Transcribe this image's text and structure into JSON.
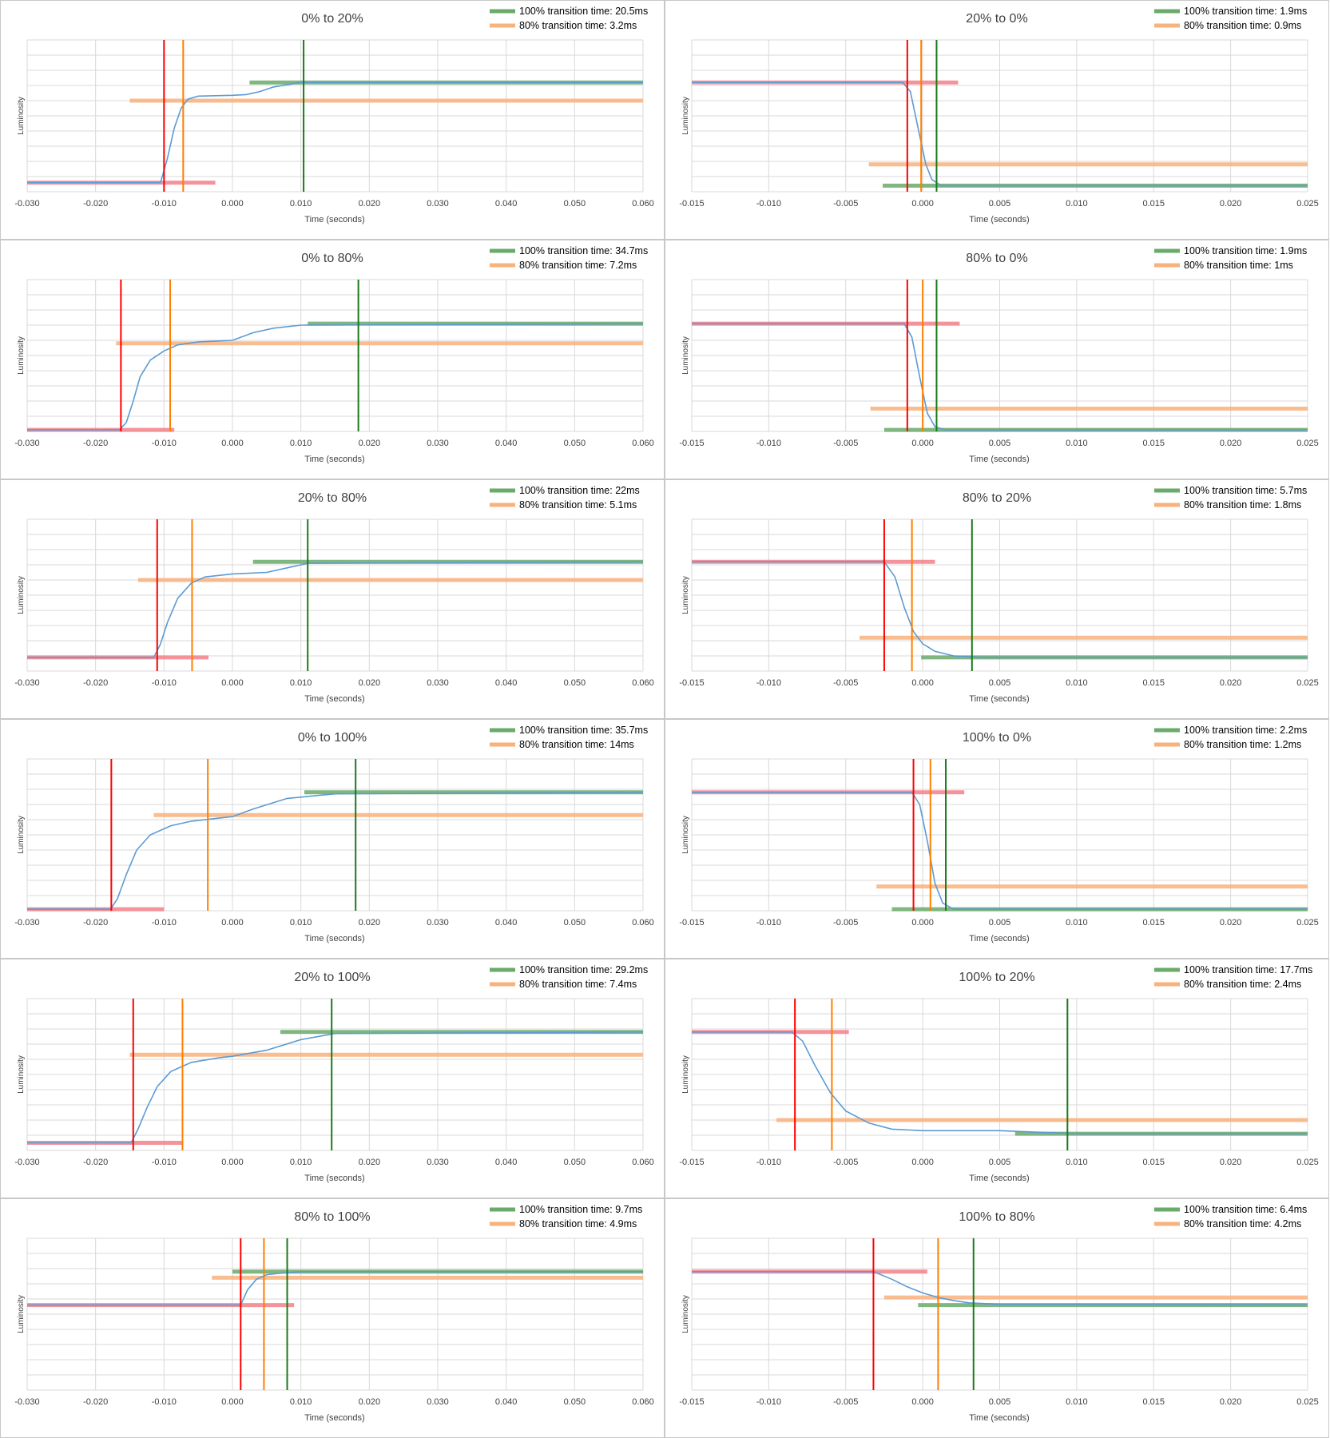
{
  "colors": {
    "curve": "#5b9bd5",
    "red_marker": "#ff0000",
    "orange_marker": "#ff7f00",
    "green_marker": "#1a7a1a",
    "green_band": "#6aaa6a",
    "orange_band": "#f8b27c",
    "red_band": "#f3808a",
    "grid": "#d9d9d9",
    "frame": "#c8c8c8",
    "text": "#404040"
  },
  "chart_data": [
    {
      "type": "line",
      "title": "0% to 20%",
      "xlabel": "Time (seconds)",
      "ylabel": "Luminosity",
      "x_ticks": [
        "-0.030",
        "-0.020",
        "-0.010",
        "0.000",
        "0.010",
        "0.020",
        "0.030",
        "0.040",
        "0.050",
        "0.060"
      ],
      "xlim": [
        -0.03,
        0.06
      ],
      "ylim": [
        0,
        100
      ],
      "grid": true,
      "legend": [
        {
          "label": "100% transition time: 20.5ms",
          "color": "green"
        },
        {
          "label": "80% transition time: 3.2ms",
          "color": "orange"
        }
      ],
      "start_level": 6,
      "end_level": 72,
      "mid_level": 60,
      "curve": [
        [
          -0.03,
          6
        ],
        [
          -0.0105,
          6
        ],
        [
          -0.0095,
          22
        ],
        [
          -0.0085,
          42
        ],
        [
          -0.0075,
          55
        ],
        [
          -0.0065,
          61
        ],
        [
          -0.005,
          63
        ],
        [
          0,
          63.5
        ],
        [
          0.002,
          64
        ],
        [
          0.004,
          66
        ],
        [
          0.006,
          69
        ],
        [
          0.01,
          72
        ],
        [
          0.06,
          72
        ]
      ],
      "red_band": [
        -0.03,
        -0.0025,
        6
      ],
      "orange_band": [
        -0.015,
        0.06,
        60
      ],
      "green_band": [
        0.0025,
        0.06,
        72
      ],
      "red_x": -0.01,
      "orange_x": -0.0072,
      "green_x": 0.0104
    },
    {
      "type": "line",
      "title": "20% to 0%",
      "xlabel": "Time (seconds)",
      "ylabel": "Luminosity",
      "x_ticks": [
        "-0.015",
        "-0.010",
        "-0.005",
        "0.000",
        "0.005",
        "0.010",
        "0.015",
        "0.020",
        "0.025"
      ],
      "xlim": [
        -0.015,
        0.025
      ],
      "ylim": [
        0,
        100
      ],
      "grid": true,
      "legend": [
        {
          "label": "100% transition time: 1.9ms",
          "color": "green"
        },
        {
          "label": "80% transition time: 0.9ms",
          "color": "orange"
        }
      ],
      "curve": [
        [
          -0.015,
          72
        ],
        [
          -0.0013,
          72
        ],
        [
          -0.0008,
          66
        ],
        [
          -0.0003,
          42
        ],
        [
          0.0002,
          18
        ],
        [
          0.0006,
          8
        ],
        [
          0.0012,
          4
        ],
        [
          0.025,
          4
        ]
      ],
      "red_band": [
        -0.015,
        0.0023,
        72
      ],
      "orange_band": [
        -0.0035,
        0.025,
        18
      ],
      "green_band": [
        -0.0026,
        0.025,
        4
      ],
      "red_x": -0.001,
      "orange_x": -0.0001,
      "green_x": 0.0009
    },
    {
      "type": "line",
      "title": "0% to 80%",
      "xlabel": "Time (seconds)",
      "ylabel": "Luminosity",
      "x_ticks": [
        "-0.030",
        "-0.020",
        "-0.010",
        "0.000",
        "0.010",
        "0.020",
        "0.030",
        "0.040",
        "0.050",
        "0.060"
      ],
      "xlim": [
        -0.03,
        0.06
      ],
      "ylim": [
        0,
        100
      ],
      "grid": true,
      "legend": [
        {
          "label": "100% transition time: 34.7ms",
          "color": "green"
        },
        {
          "label": "80% transition time: 7.2ms",
          "color": "orange"
        }
      ],
      "curve": [
        [
          -0.03,
          1
        ],
        [
          -0.0165,
          1
        ],
        [
          -0.0155,
          6
        ],
        [
          -0.0145,
          20
        ],
        [
          -0.0135,
          36
        ],
        [
          -0.012,
          47
        ],
        [
          -0.01,
          53
        ],
        [
          -0.008,
          57
        ],
        [
          -0.005,
          59
        ],
        [
          0,
          60
        ],
        [
          0.003,
          65
        ],
        [
          0.006,
          68
        ],
        [
          0.01,
          70
        ],
        [
          0.06,
          71
        ]
      ],
      "red_band": [
        -0.03,
        -0.0085,
        1
      ],
      "orange_band": [
        -0.017,
        0.06,
        58
      ],
      "green_band": [
        0.011,
        0.06,
        71
      ],
      "red_x": -0.0163,
      "orange_x": -0.0091,
      "green_x": 0.0184
    },
    {
      "type": "line",
      "title": "80% to 0%",
      "xlabel": "Time (seconds)",
      "ylabel": "Luminosity",
      "x_ticks": [
        "-0.015",
        "-0.010",
        "-0.005",
        "0.000",
        "0.005",
        "0.010",
        "0.015",
        "0.020",
        "0.025"
      ],
      "xlim": [
        -0.015,
        0.025
      ],
      "ylim": [
        0,
        100
      ],
      "grid": true,
      "legend": [
        {
          "label": "100% transition time: 1.9ms",
          "color": "green"
        },
        {
          "label": "80% transition time: 1ms",
          "color": "orange"
        }
      ],
      "curve": [
        [
          -0.015,
          71
        ],
        [
          -0.0012,
          71
        ],
        [
          -0.0007,
          62
        ],
        [
          -0.0002,
          36
        ],
        [
          0.0003,
          12
        ],
        [
          0.0008,
          3
        ],
        [
          0.0015,
          1
        ],
        [
          0.025,
          1
        ]
      ],
      "red_band": [
        -0.015,
        0.0024,
        71
      ],
      "orange_band": [
        -0.0034,
        0.025,
        15
      ],
      "green_band": [
        -0.0025,
        0.025,
        1
      ],
      "red_x": -0.001,
      "orange_x": 0.0,
      "green_x": 0.0009
    },
    {
      "type": "line",
      "title": "20% to 80%",
      "xlabel": "Time (seconds)",
      "ylabel": "Luminosity",
      "x_ticks": [
        "-0.030",
        "-0.020",
        "-0.010",
        "0.000",
        "0.010",
        "0.020",
        "0.030",
        "0.040",
        "0.050",
        "0.060"
      ],
      "xlim": [
        -0.03,
        0.06
      ],
      "ylim": [
        0,
        100
      ],
      "grid": true,
      "legend": [
        {
          "label": "100% transition time: 22ms",
          "color": "green"
        },
        {
          "label": "80% transition time: 5.1ms",
          "color": "orange"
        }
      ],
      "curve": [
        [
          -0.03,
          9
        ],
        [
          -0.0115,
          9
        ],
        [
          -0.0105,
          18
        ],
        [
          -0.0095,
          32
        ],
        [
          -0.008,
          48
        ],
        [
          -0.006,
          58
        ],
        [
          -0.004,
          62
        ],
        [
          0,
          64
        ],
        [
          0.005,
          65
        ],
        [
          0.008,
          68
        ],
        [
          0.011,
          71
        ],
        [
          0.06,
          72
        ]
      ],
      "red_band": [
        -0.03,
        -0.0035,
        9
      ],
      "orange_band": [
        -0.0138,
        0.06,
        60
      ],
      "green_band": [
        0.003,
        0.06,
        72
      ],
      "red_x": -0.011,
      "orange_x": -0.0059,
      "green_x": 0.011
    },
    {
      "type": "line",
      "title": "80% to 20%",
      "xlabel": "Time (seconds)",
      "ylabel": "Luminosity",
      "x_ticks": [
        "-0.015",
        "-0.010",
        "-0.005",
        "0.000",
        "0.005",
        "0.010",
        "0.015",
        "0.020",
        "0.025"
      ],
      "xlim": [
        -0.015,
        0.025
      ],
      "ylim": [
        0,
        100
      ],
      "grid": true,
      "legend": [
        {
          "label": "100% transition time: 5.7ms",
          "color": "green"
        },
        {
          "label": "80% transition time: 1.8ms",
          "color": "orange"
        }
      ],
      "curve": [
        [
          -0.015,
          72
        ],
        [
          -0.0025,
          72
        ],
        [
          -0.0018,
          62
        ],
        [
          -0.0012,
          42
        ],
        [
          -0.0006,
          26
        ],
        [
          0,
          18
        ],
        [
          0.0008,
          13
        ],
        [
          0.002,
          10
        ],
        [
          0.004,
          9
        ],
        [
          0.025,
          9
        ]
      ],
      "red_band": [
        -0.015,
        0.0008,
        72
      ],
      "orange_band": [
        -0.0041,
        0.025,
        22
      ],
      "green_band": [
        -0.0001,
        0.025,
        9
      ],
      "red_x": -0.0025,
      "orange_x": -0.0007,
      "green_x": 0.0032
    },
    {
      "type": "line",
      "title": "0% to 100%",
      "xlabel": "Time (seconds)",
      "ylabel": "Luminosity",
      "x_ticks": [
        "-0.030",
        "-0.020",
        "-0.010",
        "0.000",
        "0.010",
        "0.020",
        "0.030",
        "0.040",
        "0.050",
        "0.060"
      ],
      "xlim": [
        -0.03,
        0.06
      ],
      "ylim": [
        0,
        100
      ],
      "grid": true,
      "legend": [
        {
          "label": "100% transition time: 35.7ms",
          "color": "green"
        },
        {
          "label": "80% transition time: 14ms",
          "color": "orange"
        }
      ],
      "curve": [
        [
          -0.03,
          1
        ],
        [
          -0.0178,
          1
        ],
        [
          -0.0168,
          8
        ],
        [
          -0.0155,
          24
        ],
        [
          -0.014,
          40
        ],
        [
          -0.012,
          50
        ],
        [
          -0.009,
          56
        ],
        [
          -0.006,
          59
        ],
        [
          -0.002,
          61
        ],
        [
          0,
          62
        ],
        [
          0.003,
          67
        ],
        [
          0.008,
          74
        ],
        [
          0.015,
          77
        ],
        [
          0.06,
          78
        ]
      ],
      "red_band": [
        -0.03,
        -0.01,
        1
      ],
      "orange_band": [
        -0.0115,
        0.06,
        63
      ],
      "green_band": [
        0.0105,
        0.06,
        78
      ],
      "red_x": -0.0177,
      "orange_x": -0.0036,
      "green_x": 0.018
    },
    {
      "type": "line",
      "title": "100% to 0%",
      "xlabel": "Time (seconds)",
      "ylabel": "Luminosity",
      "x_ticks": [
        "-0.015",
        "-0.010",
        "-0.005",
        "0.000",
        "0.005",
        "0.010",
        "0.015",
        "0.020",
        "0.025"
      ],
      "xlim": [
        -0.015,
        0.025
      ],
      "ylim": [
        0,
        100
      ],
      "grid": true,
      "legend": [
        {
          "label": "100% transition time: 2.2ms",
          "color": "green"
        },
        {
          "label": "80% transition time: 1.2ms",
          "color": "orange"
        }
      ],
      "curve": [
        [
          -0.015,
          78
        ],
        [
          -0.0007,
          78
        ],
        [
          -0.0002,
          70
        ],
        [
          0.0003,
          46
        ],
        [
          0.0008,
          18
        ],
        [
          0.0013,
          5
        ],
        [
          0.002,
          1
        ],
        [
          0.025,
          1
        ]
      ],
      "red_band": [
        -0.015,
        0.0027,
        78
      ],
      "orange_band": [
        -0.003,
        0.025,
        16
      ],
      "green_band": [
        -0.002,
        0.025,
        1
      ],
      "red_x": -0.0006,
      "orange_x": 0.0005,
      "green_x": 0.0015
    },
    {
      "type": "line",
      "title": "20% to 100%",
      "xlabel": "Time (seconds)",
      "ylabel": "Luminosity",
      "x_ticks": [
        "-0.030",
        "-0.020",
        "-0.010",
        "0.000",
        "0.010",
        "0.020",
        "0.030",
        "0.040",
        "0.050",
        "0.060"
      ],
      "xlim": [
        -0.03,
        0.06
      ],
      "ylim": [
        0,
        100
      ],
      "grid": true,
      "legend": [
        {
          "label": "100% transition time: 29.2ms",
          "color": "green"
        },
        {
          "label": "80% transition time: 7.4ms",
          "color": "orange"
        }
      ],
      "curve": [
        [
          -0.03,
          5
        ],
        [
          -0.0148,
          5
        ],
        [
          -0.0138,
          14
        ],
        [
          -0.0125,
          28
        ],
        [
          -0.011,
          42
        ],
        [
          -0.009,
          52
        ],
        [
          -0.006,
          58
        ],
        [
          -0.002,
          61
        ],
        [
          0,
          62
        ],
        [
          0.005,
          66
        ],
        [
          0.01,
          73
        ],
        [
          0.015,
          77
        ],
        [
          0.06,
          78
        ]
      ],
      "red_band": [
        -0.03,
        -0.0072,
        5
      ],
      "orange_band": [
        -0.015,
        0.06,
        63
      ],
      "green_band": [
        0.007,
        0.06,
        78
      ],
      "red_x": -0.0145,
      "orange_x": -0.0073,
      "green_x": 0.0145
    },
    {
      "type": "line",
      "title": "100% to 20%",
      "xlabel": "Time (seconds)",
      "ylabel": "Luminosity",
      "x_ticks": [
        "-0.015",
        "-0.010",
        "-0.005",
        "0.000",
        "0.005",
        "0.010",
        "0.015",
        "0.020",
        "0.025"
      ],
      "xlim": [
        -0.015,
        0.025
      ],
      "ylim": [
        0,
        100
      ],
      "grid": true,
      "legend": [
        {
          "label": "100% transition time: 17.7ms",
          "color": "green"
        },
        {
          "label": "80% transition time: 2.4ms",
          "color": "orange"
        }
      ],
      "curve": [
        [
          -0.015,
          78
        ],
        [
          -0.0085,
          78
        ],
        [
          -0.0078,
          72
        ],
        [
          -0.007,
          56
        ],
        [
          -0.006,
          38
        ],
        [
          -0.005,
          26
        ],
        [
          -0.0035,
          18
        ],
        [
          -0.002,
          14
        ],
        [
          0,
          13
        ],
        [
          0.005,
          13
        ],
        [
          0.01,
          11
        ],
        [
          0.025,
          11
        ]
      ],
      "red_band": [
        -0.015,
        -0.0048,
        78
      ],
      "orange_band": [
        -0.0095,
        0.025,
        20
      ],
      "green_band": [
        0.006,
        0.025,
        11
      ],
      "red_x": -0.0083,
      "orange_x": -0.0059,
      "green_x": 0.0094
    },
    {
      "type": "line",
      "title": "80% to 100%",
      "xlabel": "Time (seconds)",
      "ylabel": "Luminosity",
      "x_ticks": [
        "-0.030",
        "-0.020",
        "-0.010",
        "0.000",
        "0.010",
        "0.020",
        "0.030",
        "0.040",
        "0.050",
        "0.060"
      ],
      "xlim": [
        -0.03,
        0.06
      ],
      "ylim": [
        0,
        100
      ],
      "grid": true,
      "legend": [
        {
          "label": "100% transition time: 9.7ms",
          "color": "green"
        },
        {
          "label": "80% transition time: 4.9ms",
          "color": "orange"
        }
      ],
      "curve": [
        [
          -0.03,
          56
        ],
        [
          0.0012,
          56
        ],
        [
          0.0022,
          66
        ],
        [
          0.0035,
          73
        ],
        [
          0.005,
          76
        ],
        [
          0.007,
          77
        ],
        [
          0.01,
          78
        ],
        [
          0.06,
          78
        ]
      ],
      "red_band": [
        -0.03,
        0.009,
        56
      ],
      "orange_band": [
        -0.003,
        0.06,
        74
      ],
      "green_band": [
        0,
        0.06,
        78
      ],
      "red_x": 0.0012,
      "orange_x": 0.0046,
      "green_x": 0.008
    },
    {
      "type": "line",
      "title": "100% to 80%",
      "xlabel": "Time (seconds)",
      "ylabel": "Luminosity",
      "x_ticks": [
        "-0.015",
        "-0.010",
        "-0.005",
        "0.000",
        "0.005",
        "0.010",
        "0.015",
        "0.020",
        "0.025"
      ],
      "xlim": [
        -0.015,
        0.025
      ],
      "ylim": [
        0,
        100
      ],
      "grid": true,
      "legend": [
        {
          "label": "100% transition time: 6.4ms",
          "color": "green"
        },
        {
          "label": "80% transition time: 4.2ms",
          "color": "orange"
        }
      ],
      "curve": [
        [
          -0.015,
          78
        ],
        [
          -0.0032,
          78
        ],
        [
          -0.002,
          73
        ],
        [
          -0.001,
          68
        ],
        [
          0,
          64
        ],
        [
          0.001,
          61
        ],
        [
          0.002,
          59
        ],
        [
          0.003,
          57.5
        ],
        [
          0.005,
          56.5
        ],
        [
          0.025,
          56
        ]
      ],
      "red_band": [
        -0.015,
        0.0003,
        78
      ],
      "orange_band": [
        -0.0025,
        0.025,
        61
      ],
      "green_band": [
        -0.0003,
        0.025,
        56
      ],
      "red_x": -0.0032,
      "orange_x": 0.001,
      "green_x": 0.0033
    }
  ]
}
